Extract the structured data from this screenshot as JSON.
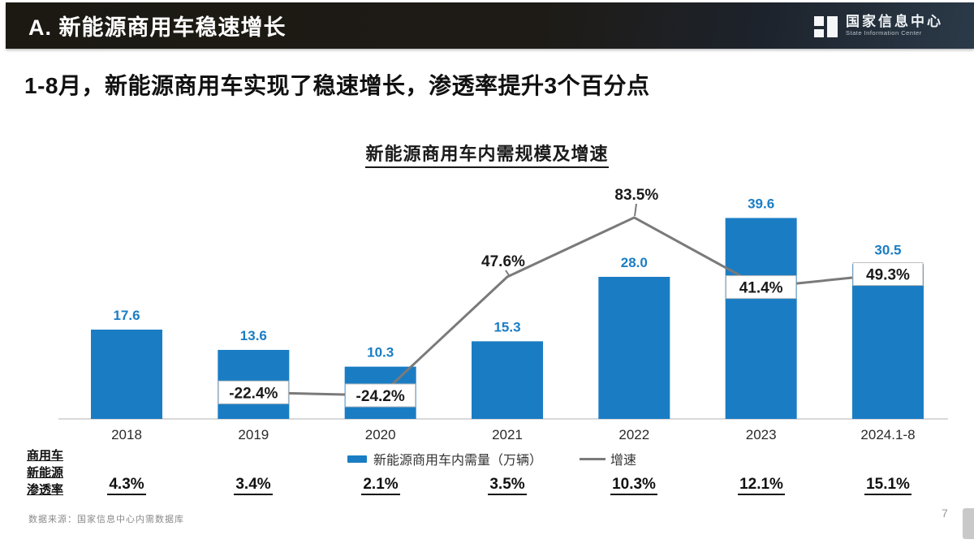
{
  "header": {
    "title": "A. 新能源商用车稳速增长",
    "logo": {
      "name_cn": "国家信息中心",
      "name_en": "State Information Center"
    }
  },
  "subtitle": "1-8月，新能源商用车实现了稳速增长，渗透率提升3个百分点",
  "chart_data": {
    "type": "bar",
    "title": "新能源商用车内需规模及增速",
    "categories": [
      "2018",
      "2019",
      "2020",
      "2021",
      "2022",
      "2023",
      "2024.1-8"
    ],
    "series": [
      {
        "name": "新能源商用车内需量（万辆）",
        "type": "bar",
        "values": [
          17.6,
          13.6,
          10.3,
          15.3,
          28.0,
          39.6,
          30.5
        ],
        "labels": [
          "17.6",
          "13.6",
          "10.3",
          "15.3",
          "28.0",
          "39.6",
          "30.5"
        ],
        "color": "#1a7dc4"
      },
      {
        "name": "增速",
        "type": "line",
        "values": [
          null,
          -22.4,
          -24.2,
          47.6,
          83.5,
          41.4,
          49.3
        ],
        "labels": [
          null,
          "-22.4%",
          "-24.2%",
          "47.6%",
          "83.5%",
          "41.4%",
          "49.3%"
        ],
        "boxed_labels": [
          false,
          true,
          true,
          false,
          false,
          true,
          true
        ],
        "color": "#7a7a7a"
      }
    ],
    "xlabel": "",
    "ylabel": "",
    "grid": false,
    "legend_position": "bottom"
  },
  "legend": {
    "bar_label": "新能源商用车内需量（万辆）",
    "line_label": "增速"
  },
  "penetration": {
    "label_lines": [
      "商用车",
      "新能源",
      "渗透率"
    ],
    "values": [
      "4.3%",
      "3.4%",
      "2.1%",
      "3.5%",
      "10.3%",
      "12.1%",
      "15.1%"
    ]
  },
  "footer": {
    "source": "数据来源：国家信息中心内需数据库",
    "page": "7"
  },
  "colors": {
    "bar": "#1a7dc4",
    "line": "#7a7a7a",
    "axis": "#d9d9d9",
    "growth_label": "#1a1a1a"
  }
}
